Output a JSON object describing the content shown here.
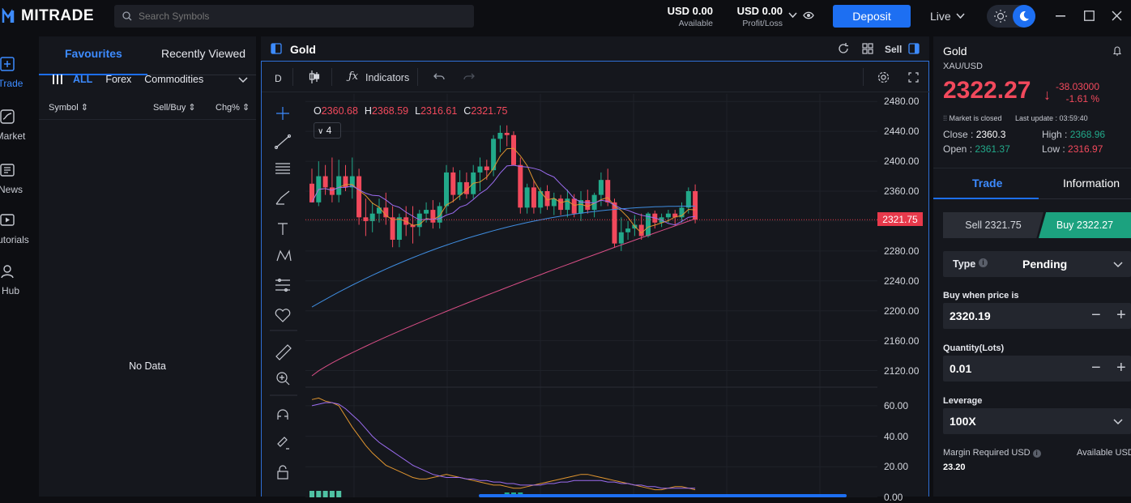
{
  "app": {
    "brand": "MITRADE"
  },
  "search": {
    "placeholder": "Search Symbols"
  },
  "account": {
    "available_value": "USD 0.00",
    "available_label": "Available",
    "pl_value": "USD 0.00",
    "pl_label": "Profit/Loss",
    "deposit_label": "Deposit",
    "mode_label": "Live"
  },
  "leftnav": [
    {
      "label": "Trade",
      "icon": "plus-square-icon"
    },
    {
      "label": "Market",
      "icon": "chart-line-icon"
    },
    {
      "label": "News",
      "icon": "newspaper-icon"
    },
    {
      "label": "Tutorials",
      "icon": "play-icon"
    },
    {
      "label": "Hub",
      "icon": "user-icon"
    }
  ],
  "favourites": {
    "tab_favourites": "Favourites",
    "tab_recent": "Recently Viewed",
    "filters": [
      "ALL",
      "Forex",
      "Commodities"
    ],
    "col_symbol": "Symbol",
    "col_sellbuy": "Sell/Buy",
    "col_chg": "Chg%",
    "empty": "No Data"
  },
  "chart": {
    "title": "Gold",
    "sell_label": "Sell",
    "timeframe": "D",
    "indicators_label": "Indicators",
    "ohlc": {
      "o": "2360.68",
      "h": "2368.59",
      "l": "2316.61",
      "c": "2321.75"
    },
    "indicator_count": "4",
    "last_price_tag": "2321.75",
    "price_ticks": [
      "2480.00",
      "2440.00",
      "2400.00",
      "2360.00",
      "2320.00",
      "2280.00",
      "2240.00",
      "2200.00",
      "2160.00",
      "2120.00"
    ],
    "osc_ticks": [
      "60.00",
      "40.00",
      "20.00",
      "0.00"
    ]
  },
  "chart_data": {
    "type": "candlestick",
    "ylim": [
      2100,
      2490
    ],
    "yticks": [
      2480,
      2440,
      2400,
      2360,
      2320,
      2280,
      2240,
      2200,
      2160,
      2120
    ],
    "last_price": 2321.75,
    "colors": {
      "up": "#22a98a",
      "down": "#f2495c"
    },
    "candles": [
      [
        2370,
        2390,
        2345,
        2345
      ],
      [
        2345,
        2400,
        2340,
        2380
      ],
      [
        2380,
        2395,
        2355,
        2365
      ],
      [
        2365,
        2405,
        2345,
        2355
      ],
      [
        2355,
        2402,
        2345,
        2380
      ],
      [
        2380,
        2395,
        2360,
        2365
      ],
      [
        2365,
        2405,
        2350,
        2380
      ],
      [
        2380,
        2390,
        2315,
        2325
      ],
      [
        2325,
        2350,
        2300,
        2320
      ],
      [
        2320,
        2345,
        2305,
        2330
      ],
      [
        2330,
        2350,
        2318,
        2338
      ],
      [
        2338,
        2358,
        2315,
        2325
      ],
      [
        2325,
        2340,
        2285,
        2295
      ],
      [
        2295,
        2330,
        2285,
        2325
      ],
      [
        2325,
        2340,
        2300,
        2315
      ],
      [
        2315,
        2340,
        2290,
        2312
      ],
      [
        2312,
        2335,
        2300,
        2330
      ],
      [
        2330,
        2345,
        2318,
        2335
      ],
      [
        2335,
        2348,
        2310,
        2318
      ],
      [
        2318,
        2345,
        2310,
        2340
      ],
      [
        2340,
        2395,
        2330,
        2385
      ],
      [
        2385,
        2392,
        2345,
        2355
      ],
      [
        2355,
        2388,
        2348,
        2372
      ],
      [
        2372,
        2385,
        2350,
        2356
      ],
      [
        2356,
        2395,
        2350,
        2385
      ],
      [
        2385,
        2405,
        2360,
        2393
      ],
      [
        2393,
        2402,
        2375,
        2388
      ],
      [
        2388,
        2435,
        2380,
        2430
      ],
      [
        2430,
        2448,
        2412,
        2438
      ],
      [
        2438,
        2448,
        2420,
        2435
      ],
      [
        2435,
        2440,
        2395,
        2395
      ],
      [
        2395,
        2405,
        2330,
        2338
      ],
      [
        2338,
        2370,
        2330,
        2365
      ],
      [
        2365,
        2375,
        2330,
        2338
      ],
      [
        2338,
        2365,
        2330,
        2360
      ],
      [
        2360,
        2368,
        2335,
        2340
      ],
      [
        2340,
        2358,
        2328,
        2350
      ],
      [
        2350,
        2355,
        2328,
        2335
      ],
      [
        2335,
        2362,
        2325,
        2350
      ],
      [
        2350,
        2356,
        2325,
        2330
      ],
      [
        2330,
        2360,
        2320,
        2348
      ],
      [
        2348,
        2362,
        2330,
        2335
      ],
      [
        2335,
        2358,
        2325,
        2355
      ],
      [
        2355,
        2385,
        2340,
        2375
      ],
      [
        2375,
        2390,
        2340,
        2345
      ],
      [
        2345,
        2350,
        2285,
        2290
      ],
      [
        2290,
        2325,
        2280,
        2305
      ],
      [
        2305,
        2320,
        2295,
        2310
      ],
      [
        2310,
        2328,
        2300,
        2315
      ],
      [
        2315,
        2330,
        2295,
        2300
      ],
      [
        2300,
        2332,
        2298,
        2330
      ],
      [
        2330,
        2334,
        2310,
        2318
      ],
      [
        2318,
        2330,
        2312,
        2325
      ],
      [
        2325,
        2335,
        2318,
        2330
      ],
      [
        2330,
        2335,
        2315,
        2325
      ],
      [
        2325,
        2345,
        2318,
        2338
      ],
      [
        2338,
        2365,
        2330,
        2360
      ],
      [
        2360,
        2369,
        2317,
        2322
      ]
    ],
    "oscillator": {
      "ylim": [
        0,
        70
      ],
      "ticks": [
        60,
        40,
        20,
        0
      ]
    }
  },
  "right": {
    "name": "Gold",
    "symbol": "XAU/USD",
    "price": "2322.27",
    "change": "-38.03000",
    "change_pct": "-1.61 %",
    "market_status": "Market is closed",
    "last_update": "Last update : 03:59:40",
    "close_label": "Close :",
    "close": "2360.3",
    "high_label": "High :",
    "high": "2368.96",
    "open_label": "Open :",
    "open": "2361.37",
    "low_label": "Low :",
    "low": "2316.97",
    "tab_trade": "Trade",
    "tab_info": "Information",
    "sell_btn": "Sell 2321.75",
    "buy_btn": "Buy 2322.27",
    "type_label": "Type",
    "type_value": "Pending",
    "buy_when_label": "Buy when price is",
    "buy_when_value": "2320.19",
    "qty_label": "Quantity(Lots)",
    "qty_value": "0.01",
    "leverage_label": "Leverage",
    "leverage_value": "100X",
    "margin_label": "Margin Required USD",
    "margin_value": "23.20",
    "available_label": "Available USD"
  }
}
